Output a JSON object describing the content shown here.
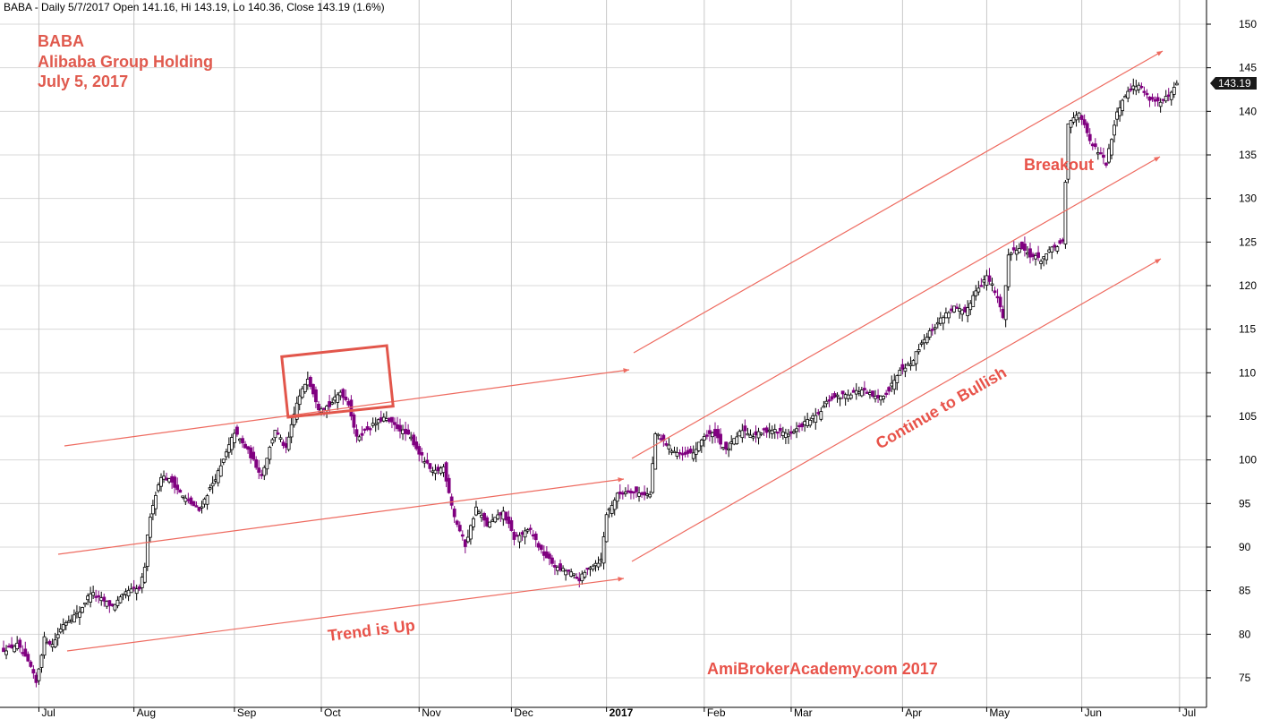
{
  "header": {
    "ohlc_text": "BABA - Daily 5/7/2017 Open 141.16, Hi 143.19, Lo 140.36, Close 143.19 (1.6%)"
  },
  "titles": {
    "line1": "BABA",
    "line2": "Alibaba Group Holding",
    "line3": "July 5, 2017"
  },
  "annotations": {
    "trend_up": "Trend is Up",
    "continue_bullish": "Continue to Bullish",
    "breakout": "Breakout",
    "watermark": "AmiBrokerAcademy.com  2017"
  },
  "last_price_label": "143.19",
  "colors": {
    "bull_body": "#ffffff",
    "bull_border": "#000000",
    "bear_body": "#800080",
    "wick": "#800080",
    "annotation": "#e8534a",
    "trend_line": "#ee6b60",
    "price_label_bg": "#1a1a1a"
  },
  "chart_data": {
    "type": "candlestick",
    "ylim": [
      72.5,
      151
    ],
    "y_ticks": [
      75,
      80,
      85,
      90,
      95,
      100,
      105,
      110,
      115,
      120,
      125,
      130,
      135,
      140,
      145,
      150
    ],
    "x_ticks": [
      {
        "label": "Jul",
        "day": 13
      },
      {
        "label": "Aug",
        "day": 48
      },
      {
        "label": "Sep",
        "day": 85
      },
      {
        "label": "Oct",
        "day": 117
      },
      {
        "label": "Nov",
        "day": 153
      },
      {
        "label": "Dec",
        "day": 187
      },
      {
        "label": "2017",
        "day": 222,
        "bold": true
      },
      {
        "label": "Feb",
        "day": 258
      },
      {
        "label": "Mar",
        "day": 290
      },
      {
        "label": "Apr",
        "day": 331
      },
      {
        "label": "May",
        "day": 362
      },
      {
        "label": "Jun",
        "day": 397
      },
      {
        "label": "Jul",
        "day": 433
      }
    ],
    "x_domain": [
      0,
      437
    ],
    "anchors": [
      [
        0,
        78.2
      ],
      [
        5,
        78.8
      ],
      [
        10,
        76.2
      ],
      [
        12,
        74.4
      ],
      [
        15,
        79.5
      ],
      [
        18,
        78.8
      ],
      [
        22,
        81.2
      ],
      [
        28,
        82.6
      ],
      [
        32,
        84.8
      ],
      [
        40,
        83.2
      ],
      [
        46,
        85.0
      ],
      [
        50,
        85.2
      ],
      [
        52,
        87.5
      ],
      [
        53,
        91.5
      ],
      [
        55,
        95.0
      ],
      [
        58,
        98.2
      ],
      [
        62,
        97.5
      ],
      [
        66,
        95.8
      ],
      [
        72,
        94.2
      ],
      [
        80,
        99.2
      ],
      [
        85,
        103.2
      ],
      [
        90,
        101.0
      ],
      [
        95,
        98.2
      ],
      [
        100,
        103.5
      ],
      [
        104,
        101.2
      ],
      [
        108,
        106.5
      ],
      [
        112,
        109.5
      ],
      [
        116,
        106.0
      ],
      [
        120,
        106.2
      ],
      [
        124,
        107.8
      ],
      [
        127,
        106.5
      ],
      [
        130,
        102.5
      ],
      [
        134,
        103.6
      ],
      [
        140,
        104.8
      ],
      [
        146,
        103.5
      ],
      [
        150,
        102.5
      ],
      [
        153,
        100.8
      ],
      [
        158,
        98.5
      ],
      [
        162,
        99.2
      ],
      [
        166,
        93.5
      ],
      [
        170,
        90.2
      ],
      [
        174,
        94.5
      ],
      [
        178,
        92.5
      ],
      [
        184,
        94.0
      ],
      [
        188,
        91.0
      ],
      [
        194,
        92.0
      ],
      [
        198,
        89.5
      ],
      [
        204,
        87.5
      ],
      [
        208,
        87.2
      ],
      [
        212,
        86.3
      ],
      [
        216,
        87.8
      ],
      [
        220,
        88.5
      ],
      [
        222,
        93.8
      ],
      [
        226,
        96.0
      ],
      [
        230,
        96.5
      ],
      [
        234,
        96.2
      ],
      [
        238,
        96.0
      ],
      [
        240,
        103.0
      ],
      [
        246,
        101.2
      ],
      [
        250,
        100.5
      ],
      [
        254,
        100.8
      ],
      [
        258,
        102.8
      ],
      [
        262,
        103.0
      ],
      [
        266,
        101.0
      ],
      [
        272,
        103.5
      ],
      [
        276,
        102.8
      ],
      [
        282,
        103.5
      ],
      [
        286,
        103.2
      ],
      [
        290,
        103.0
      ],
      [
        296,
        104.5
      ],
      [
        300,
        105.2
      ],
      [
        304,
        107.0
      ],
      [
        310,
        107.5
      ],
      [
        316,
        108.0
      ],
      [
        322,
        107.0
      ],
      [
        326,
        108.0
      ],
      [
        330,
        110.5
      ],
      [
        334,
        111.0
      ],
      [
        338,
        113.5
      ],
      [
        342,
        115.0
      ],
      [
        346,
        116.5
      ],
      [
        350,
        117.5
      ],
      [
        354,
        116.8
      ],
      [
        358,
        119.5
      ],
      [
        362,
        121.0
      ],
      [
        364,
        120.0
      ],
      [
        366,
        118.5
      ],
      [
        368,
        116.5
      ],
      [
        370,
        123.5
      ],
      [
        374,
        124.5
      ],
      [
        378,
        123.5
      ],
      [
        382,
        123.0
      ],
      [
        386,
        124.2
      ],
      [
        390,
        125.0
      ],
      [
        392,
        138.5
      ],
      [
        396,
        140.0
      ],
      [
        400,
        136.5
      ],
      [
        404,
        135.0
      ],
      [
        406,
        134.0
      ],
      [
        410,
        140.0
      ],
      [
        414,
        142.5
      ],
      [
        418,
        143.0
      ],
      [
        422,
        141.5
      ],
      [
        426,
        141.0
      ],
      [
        430,
        142.0
      ],
      [
        432,
        143.19
      ]
    ]
  }
}
